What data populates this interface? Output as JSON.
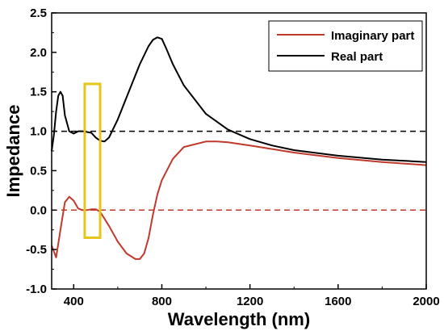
{
  "chart_data": {
    "type": "line",
    "xlabel": "Wavelength (nm)",
    "ylabel": "Impedance",
    "xlim": [
      300,
      2000
    ],
    "ylim": [
      -1.0,
      2.5
    ],
    "xticks": [
      400,
      800,
      1200,
      1600,
      2000
    ],
    "yticks": [
      -1.0,
      -0.5,
      0.0,
      0.5,
      1.0,
      1.5,
      2.0,
      2.5
    ],
    "ytick_labels": [
      "-1.0",
      "-0.5",
      "0.0",
      "0.5",
      "1.0",
      "1.5",
      "2.0",
      "2.5"
    ],
    "xtick_labels": [
      "400",
      "800",
      "1200",
      "1600",
      "2000"
    ],
    "grid": false,
    "legend_position": "top-right",
    "series": [
      {
        "name": "Imaginary part",
        "color": "#c0392b",
        "x": [
          300,
          320,
          340,
          360,
          380,
          400,
          420,
          440,
          460,
          480,
          500,
          520,
          560,
          600,
          640,
          680,
          700,
          720,
          740,
          760,
          780,
          800,
          850,
          900,
          1000,
          1050,
          1100,
          1200,
          1400,
          1600,
          1800,
          2000
        ],
        "y": [
          -0.45,
          -0.6,
          -0.25,
          0.1,
          0.17,
          0.12,
          0.02,
          0.0,
          0.0,
          0.01,
          0.01,
          -0.02,
          -0.2,
          -0.4,
          -0.55,
          -0.62,
          -0.62,
          -0.55,
          -0.35,
          -0.05,
          0.2,
          0.38,
          0.65,
          0.8,
          0.87,
          0.87,
          0.86,
          0.82,
          0.73,
          0.66,
          0.61,
          0.57
        ]
      },
      {
        "name": "Real part",
        "color": "#000000",
        "x": [
          300,
          310,
          320,
          330,
          340,
          350,
          360,
          380,
          400,
          420,
          440,
          460,
          480,
          500,
          520,
          540,
          560,
          600,
          650,
          700,
          740,
          760,
          780,
          800,
          820,
          850,
          900,
          1000,
          1100,
          1200,
          1300,
          1400,
          1600,
          1800,
          2000
        ],
        "y": [
          0.75,
          0.95,
          1.25,
          1.45,
          1.5,
          1.45,
          1.2,
          1.0,
          0.97,
          1.0,
          1.0,
          0.99,
          0.98,
          0.92,
          0.88,
          0.87,
          0.92,
          1.15,
          1.5,
          1.85,
          2.08,
          2.16,
          2.19,
          2.17,
          2.05,
          1.85,
          1.58,
          1.22,
          1.02,
          0.9,
          0.82,
          0.76,
          0.69,
          0.64,
          0.61
        ]
      }
    ],
    "reference_lines": [
      {
        "y": 1.0,
        "color": "#000000",
        "dashed": true
      },
      {
        "y": 0.0,
        "color": "#c0392b",
        "dashed": true
      }
    ],
    "highlight_box": {
      "x0": 450,
      "x1": 520,
      "y0": -0.35,
      "y1": 1.6,
      "color": "#e6c619"
    }
  }
}
